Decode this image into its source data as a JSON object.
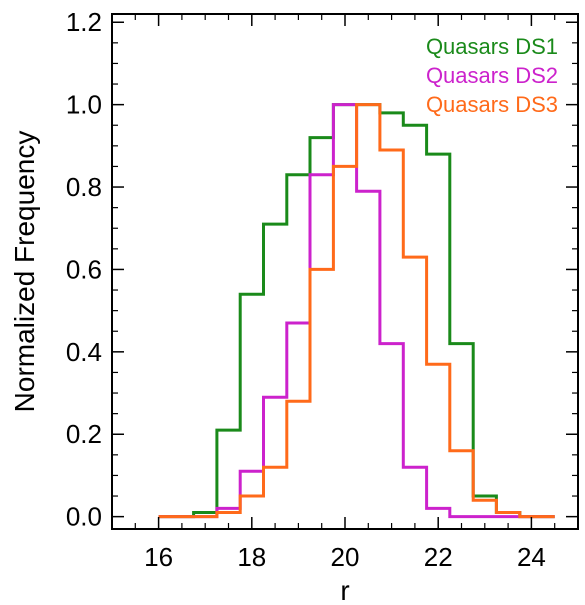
{
  "chart_data": {
    "type": "histogram",
    "xlabel": "r",
    "ylabel": "Normalized Frequency",
    "xlim": [
      15.0,
      25.0
    ],
    "ylim": [
      -0.03,
      1.22
    ],
    "xticks": [
      16,
      18,
      20,
      22,
      24
    ],
    "xtick_labels": [
      "16",
      "18",
      "20",
      "22",
      "24"
    ],
    "yticks": [
      0.0,
      0.2,
      0.4,
      0.6,
      0.8,
      1.0,
      1.2
    ],
    "ytick_labels": [
      "0.0",
      "0.2",
      "0.4",
      "0.6",
      "0.8",
      "1.0",
      "1.2"
    ],
    "grid": false,
    "legend_position": "top-right",
    "bin_edges": [
      16.0,
      16.75,
      17.25,
      17.75,
      18.25,
      18.75,
      19.25,
      19.75,
      20.25,
      20.75,
      21.25,
      21.75,
      22.25,
      22.75,
      23.25,
      23.75,
      24.5
    ],
    "series": [
      {
        "name": "Quasars DS1",
        "color": "#1a8a1a",
        "values": [
          0.0,
          0.01,
          0.21,
          0.54,
          0.71,
          0.83,
          0.92,
          1.0,
          1.0,
          0.98,
          0.95,
          0.88,
          0.42,
          0.05,
          0.01,
          0.0
        ]
      },
      {
        "name": "Quasars DS2",
        "color": "#cc22cc",
        "values": [
          0.0,
          0.0,
          0.02,
          0.11,
          0.29,
          0.47,
          0.83,
          1.0,
          0.79,
          0.42,
          0.12,
          0.02,
          0.0,
          0.0,
          0.0,
          0.0
        ]
      },
      {
        "name": "Quasars DS3",
        "color": "#ff6a1a",
        "values": [
          0.0,
          0.0,
          0.01,
          0.05,
          0.12,
          0.28,
          0.6,
          0.85,
          1.0,
          0.89,
          0.63,
          0.37,
          0.16,
          0.04,
          0.01,
          0.0
        ]
      }
    ]
  }
}
